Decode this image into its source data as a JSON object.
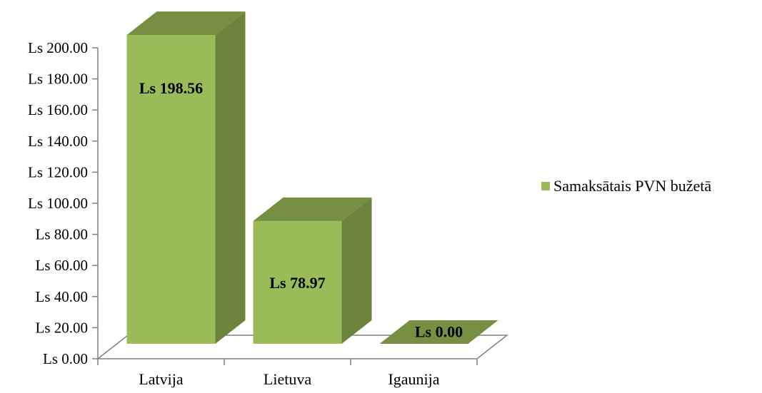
{
  "chart_data": {
    "type": "bar",
    "categories": [
      "Latvija",
      "Lietuva",
      "Igaunija"
    ],
    "series": [
      {
        "name": "Samaksātais PVN bužetā",
        "values": [
          198.56,
          78.97,
          0.0
        ]
      }
    ],
    "data_labels": [
      "Ls 198.56",
      "Ls 78.97",
      "Ls 0.00"
    ],
    "y_ticks": [
      "Ls 0.00",
      "Ls 20.00",
      "Ls 40.00",
      "Ls 60.00",
      "Ls 80.00",
      "Ls 100.00",
      "Ls 120.00",
      "Ls 140.00",
      "Ls 160.00",
      "Ls 180.00",
      "Ls 200.00"
    ],
    "ylim": [
      0,
      200
    ],
    "legend_position": "right",
    "grid": false,
    "three_d": true,
    "colors": {
      "front": "#9bbb59",
      "side": "#6b833b",
      "top": "#768f43",
      "floor_stroke": "#808080"
    }
  }
}
